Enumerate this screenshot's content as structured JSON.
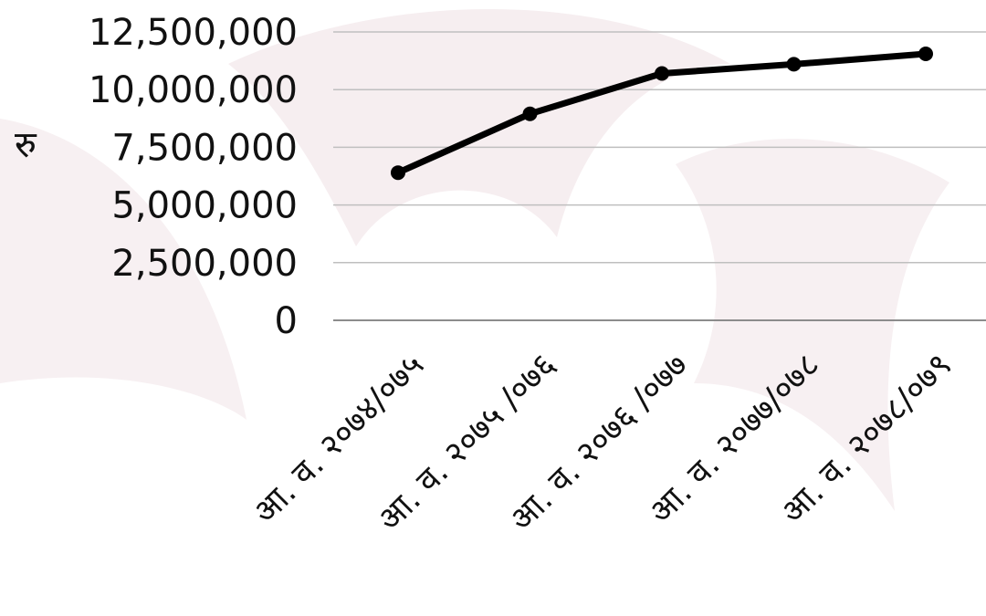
{
  "colors": {
    "background": "#ffffff",
    "watermark": "#f6eef0",
    "line": "#000000",
    "grid": "#bfbfbf",
    "axis": "#8c8c8c"
  },
  "chart_data": {
    "type": "line",
    "ylabel": "रु",
    "categories": [
      "आ. व. २०७४/०७५",
      "आ. व. २०७५ /०७६",
      "आ. व. २०७६ /०७७",
      "आ. व. २०७७/०७८",
      "आ. व. २०७८/०७९"
    ],
    "series": [
      {
        "values": [
          6400000,
          8950000,
          10700000,
          11100000,
          11550000
        ]
      }
    ],
    "ylim": [
      0,
      12500000
    ],
    "yticks": [
      "0",
      "2,500,000",
      "5,000,000",
      "7,500,000",
      "10,000,000",
      "12,500,000"
    ],
    "grid": true,
    "legend": "none"
  }
}
